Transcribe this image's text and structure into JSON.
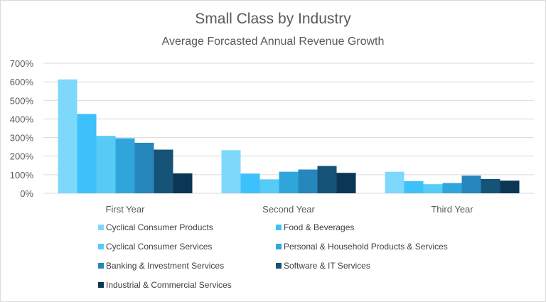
{
  "chart_data": {
    "type": "bar",
    "title": "Small Class by Industry",
    "subtitle": "Average Forcasted Annual Revenue Growth",
    "xlabel": "",
    "ylabel": "",
    "categories": [
      "First Year",
      "Second Year",
      "Third Year"
    ],
    "ylim": [
      0,
      700
    ],
    "yticks": [
      "0%",
      "100%",
      "200%",
      "300%",
      "400%",
      "500%",
      "600%",
      "700%"
    ],
    "grid": true,
    "legend_position": "bottom",
    "series": [
      {
        "name": "Cyclical Consumer Products",
        "color": "#7dd8fb",
        "values": [
          613,
          232,
          116
        ]
      },
      {
        "name": "Food & Beverages",
        "color": "#3dc1fb",
        "values": [
          427,
          106,
          65
        ]
      },
      {
        "name": "Cyclical Consumer Services",
        "color": "#55cbf6",
        "values": [
          309,
          75,
          49
        ]
      },
      {
        "name": "Personal & Household Products & Services",
        "color": "#2ea6dc",
        "values": [
          296,
          116,
          55
        ]
      },
      {
        "name": "Banking & Investment Services",
        "color": "#2587bb",
        "values": [
          272,
          128,
          95
        ]
      },
      {
        "name": "Software & IT Services",
        "color": "#155377",
        "values": [
          235,
          147,
          77
        ]
      },
      {
        "name": "Industrial & Commercial Services",
        "color": "#0b3654",
        "values": [
          107,
          110,
          68
        ]
      }
    ]
  }
}
